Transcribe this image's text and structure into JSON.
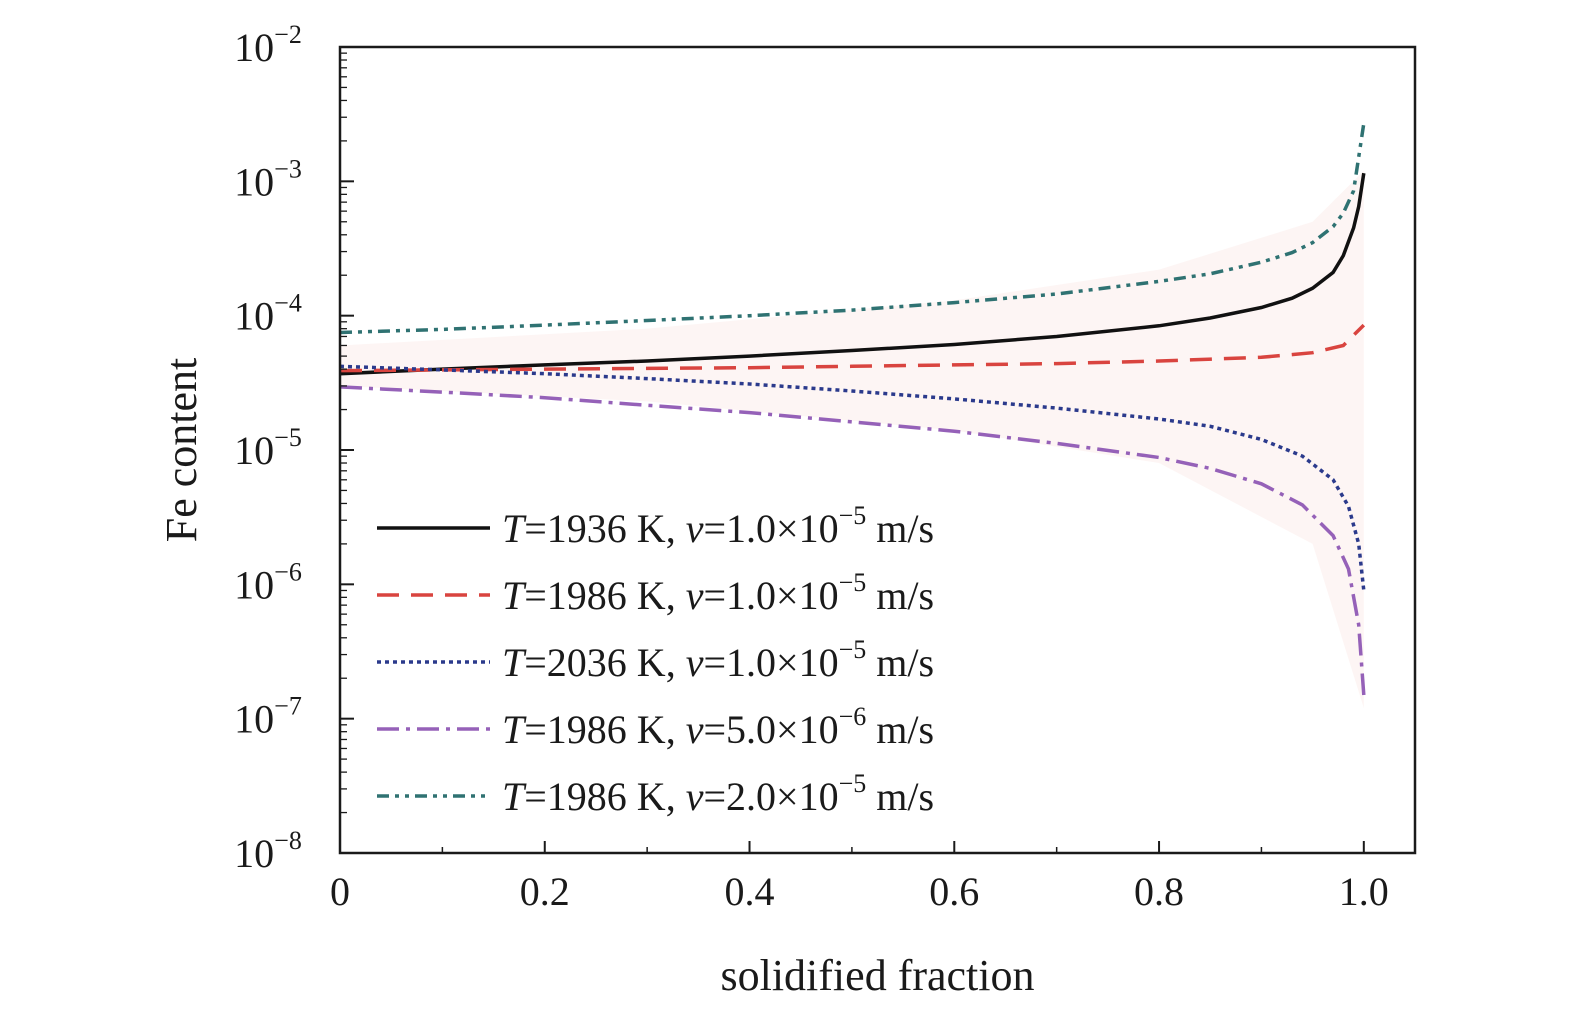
{
  "chart_data": {
    "type": "line",
    "title": "",
    "xlabel": "solidified fraction",
    "ylabel": "Fe content",
    "xlim": [
      0,
      1.05
    ],
    "ylim": [
      1e-08,
      0.01
    ],
    "yscale": "log",
    "x_ticks": [
      {
        "value": 0,
        "label": "0"
      },
      {
        "value": 0.2,
        "label": "0.2"
      },
      {
        "value": 0.4,
        "label": "0.4"
      },
      {
        "value": 0.6,
        "label": "0.6"
      },
      {
        "value": 0.8,
        "label": "0.8"
      },
      {
        "value": 1.0,
        "label": "1.0"
      }
    ],
    "y_ticks": [
      {
        "exp": -8,
        "base": "10",
        "sup": "−8"
      },
      {
        "exp": -7,
        "base": "10",
        "sup": "−7"
      },
      {
        "exp": -6,
        "base": "10",
        "sup": "−6"
      },
      {
        "exp": -5,
        "base": "10",
        "sup": "−5"
      },
      {
        "exp": -4,
        "base": "10",
        "sup": "−4"
      },
      {
        "exp": -3,
        "base": "10",
        "sup": "−3"
      },
      {
        "exp": -2,
        "base": "10",
        "sup": "−2"
      }
    ],
    "grid": false,
    "legend_position": "lower-left",
    "series": [
      {
        "legend": {
          "T": "T",
          "t_text": "=1936 K, ",
          "v": "v",
          "v_text": "=1.0×10",
          "v_exp": "−5",
          "unit": " m/s"
        },
        "color": "#111111",
        "dash": "",
        "points": [
          [
            0,
            3.7e-05
          ],
          [
            0.1,
            4e-05
          ],
          [
            0.2,
            4.3e-05
          ],
          [
            0.3,
            4.6e-05
          ],
          [
            0.4,
            5e-05
          ],
          [
            0.5,
            5.5e-05
          ],
          [
            0.6,
            6.1e-05
          ],
          [
            0.7,
            7e-05
          ],
          [
            0.8,
            8.4e-05
          ],
          [
            0.85,
            9.6e-05
          ],
          [
            0.9,
            0.000115
          ],
          [
            0.93,
            0.000135
          ],
          [
            0.95,
            0.00016
          ],
          [
            0.97,
            0.00021
          ],
          [
            0.98,
            0.00028
          ],
          [
            0.99,
            0.00045
          ],
          [
            0.995,
            0.00065
          ],
          [
            1.0,
            0.00115
          ]
        ]
      },
      {
        "legend": {
          "T": "T",
          "t_text": "=1986 K, ",
          "v": "v",
          "v_text": "=1.0×10",
          "v_exp": "−5",
          "unit": " m/s"
        },
        "color": "#d9443f",
        "dash": "22 12",
        "points": [
          [
            0,
            3.9e-05
          ],
          [
            0.1,
            3.95e-05
          ],
          [
            0.2,
            4e-05
          ],
          [
            0.3,
            4.05e-05
          ],
          [
            0.4,
            4.1e-05
          ],
          [
            0.5,
            4.2e-05
          ],
          [
            0.6,
            4.3e-05
          ],
          [
            0.7,
            4.4e-05
          ],
          [
            0.8,
            4.6e-05
          ],
          [
            0.9,
            4.9e-05
          ],
          [
            0.95,
            5.3e-05
          ],
          [
            0.98,
            6e-05
          ],
          [
            1.0,
            8.5e-05
          ]
        ]
      },
      {
        "legend": {
          "T": "T",
          "t_text": "=2036 K, ",
          "v": "v",
          "v_text": "=1.0×10",
          "v_exp": "−5",
          "unit": " m/s"
        },
        "color": "#2b3a8c",
        "dash": "4 4",
        "points": [
          [
            0,
            4.2e-05
          ],
          [
            0.1,
            3.95e-05
          ],
          [
            0.2,
            3.7e-05
          ],
          [
            0.3,
            3.4e-05
          ],
          [
            0.4,
            3.1e-05
          ],
          [
            0.5,
            2.75e-05
          ],
          [
            0.6,
            2.4e-05
          ],
          [
            0.7,
            2.05e-05
          ],
          [
            0.8,
            1.7e-05
          ],
          [
            0.85,
            1.5e-05
          ],
          [
            0.9,
            1.2e-05
          ],
          [
            0.94,
            9e-06
          ],
          [
            0.97,
            6e-06
          ],
          [
            0.985,
            3.8e-06
          ],
          [
            0.995,
            2e-06
          ],
          [
            1.0,
            9e-07
          ]
        ]
      },
      {
        "legend": {
          "T": "T",
          "t_text": "=1986 K, ",
          "v": "v",
          "v_text": "=5.0×10",
          "v_exp": "−6",
          "unit": " m/s"
        },
        "color": "#9561b8",
        "dash": "22 7 4 7",
        "points": [
          [
            0,
            2.95e-05
          ],
          [
            0.1,
            2.7e-05
          ],
          [
            0.2,
            2.45e-05
          ],
          [
            0.3,
            2.15e-05
          ],
          [
            0.4,
            1.9e-05
          ],
          [
            0.5,
            1.62e-05
          ],
          [
            0.6,
            1.38e-05
          ],
          [
            0.7,
            1.12e-05
          ],
          [
            0.8,
            8.8e-06
          ],
          [
            0.85,
            7.3e-06
          ],
          [
            0.9,
            5.6e-06
          ],
          [
            0.94,
            3.9e-06
          ],
          [
            0.97,
            2.3e-06
          ],
          [
            0.985,
            1.3e-06
          ],
          [
            0.995,
            5e-07
          ],
          [
            1.0,
            1.5e-07
          ]
        ]
      },
      {
        "legend": {
          "T": "T",
          "t_text": "=1986 K, ",
          "v": "v",
          "v_text": "=2.0×10",
          "v_exp": "−5",
          "unit": " m/s"
        },
        "color": "#2f7272",
        "dash": "12 6 4 6 4 6",
        "points": [
          [
            0,
            7.5e-05
          ],
          [
            0.1,
            7.9e-05
          ],
          [
            0.2,
            8.5e-05
          ],
          [
            0.3,
            9.2e-05
          ],
          [
            0.4,
            0.0001
          ],
          [
            0.5,
            0.00011
          ],
          [
            0.6,
            0.000125
          ],
          [
            0.7,
            0.000145
          ],
          [
            0.8,
            0.00018
          ],
          [
            0.85,
            0.000205
          ],
          [
            0.9,
            0.00025
          ],
          [
            0.93,
            0.000295
          ],
          [
            0.95,
            0.00035
          ],
          [
            0.97,
            0.00046
          ],
          [
            0.98,
            0.00058
          ],
          [
            0.99,
            0.00085
          ],
          [
            1.0,
            0.0027
          ]
        ]
      }
    ]
  }
}
